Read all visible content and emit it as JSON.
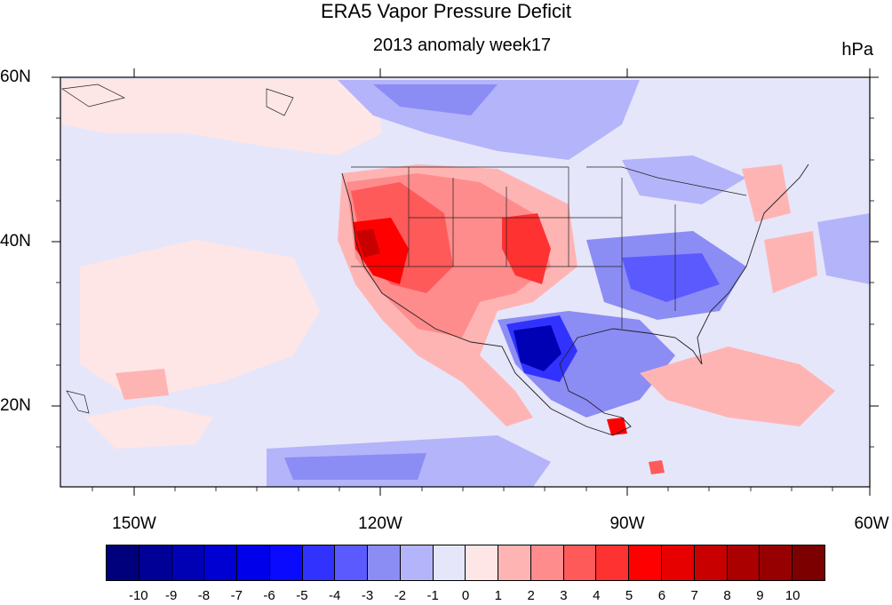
{
  "header": {
    "title": "ERA5 Vapor Pressure Deficit",
    "subtitle": "2013 anomaly week17",
    "units": "hPa"
  },
  "axes": {
    "lat_labels": [
      "60N",
      "40N",
      "20N"
    ],
    "lon_labels": [
      "150W",
      "120W",
      "90W",
      "60W"
    ],
    "lon_range": [
      -159,
      -60
    ],
    "lat_range": [
      10,
      60
    ]
  },
  "colorbar": {
    "labels": [
      "-10",
      "-9",
      "-8",
      "-7",
      "-6",
      "-5",
      "-4",
      "-3",
      "-2",
      "-1",
      "0",
      "1",
      "2",
      "3",
      "4",
      "5",
      "6",
      "7",
      "8",
      "9",
      "10"
    ],
    "colors": [
      "#00007d",
      "#000096",
      "#0000b4",
      "#0000d2",
      "#0000eb",
      "#0a0aff",
      "#3232ff",
      "#5a5aff",
      "#8c8cf5",
      "#b4b4fa",
      "#e6e6fa",
      "#ffe6e6",
      "#ffb4b4",
      "#ff8c8c",
      "#ff5a5a",
      "#ff3232",
      "#ff0000",
      "#e60000",
      "#c80000",
      "#aa0000",
      "#960000",
      "#7d0000"
    ]
  },
  "map": {
    "features": [
      "strong positive anomaly over California and Great Basin",
      "positive anomaly over central Great Plains",
      "strong negative anomaly over Texas",
      "negative anomaly over southeastern United States",
      "negative anomaly over western Canada"
    ]
  }
}
